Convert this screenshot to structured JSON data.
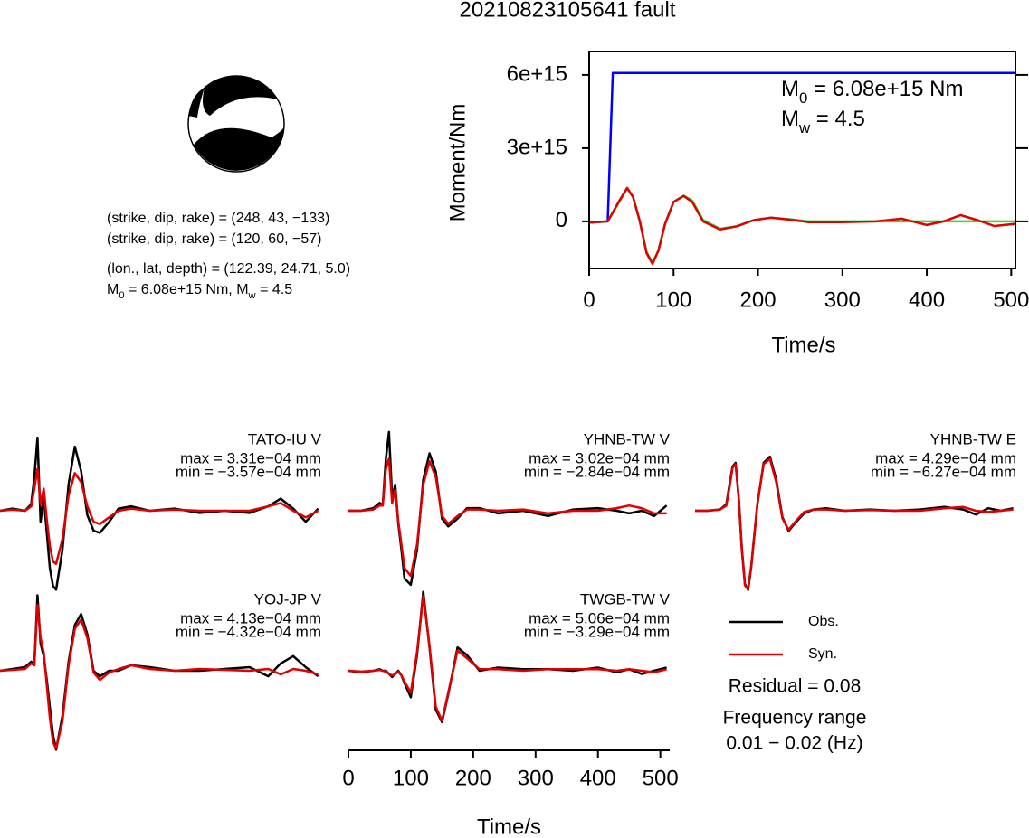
{
  "title": "20210823105641 fault",
  "mechanism": {
    "lines": [
      "(strike, dip, rake) = (248, 43, −133)",
      "(strike, dip, rake) = (120, 60, −57)",
      "(lon., lat, depth) = (122.39, 24.71, 5.0)"
    ],
    "moment_parts": [
      "M",
      "0",
      " = 6.08e+15 Nm, M",
      "w",
      " = 4.5"
    ]
  },
  "summary": {
    "residual": "Residual = 0.08",
    "frequency_label": "Frequency range",
    "frequency_range": "0.01 − 0.02 (Hz)"
  },
  "chart_data": [
    {
      "type": "line",
      "ylabel": "Moment/Nm",
      "xlabel": "Time/s",
      "xlim": [
        0,
        505
      ],
      "xticks": [
        0,
        100,
        200,
        300,
        400,
        500
      ],
      "ylim": [
        -1930000000000000.0,
        6960000000000000.0
      ],
      "yticks": [
        0,
        {
          "value": 3000000000000000.0,
          "label": "3e+15"
        },
        {
          "value": 6000000000000000.0,
          "label": "6e+15"
        }
      ],
      "annotations": [
        {
          "parts": [
            "M",
            "0",
            " = 6.08e+15 Nm"
          ]
        },
        {
          "parts": [
            "M",
            "w",
            " = 4.5"
          ]
        }
      ],
      "series": [
        {
          "color": "#0000ff",
          "x": [
            0,
            22,
            28,
            505
          ],
          "values": [
            -50000000000000.0,
            0,
            6080000000000000.0,
            6080000000000000.0
          ]
        },
        {
          "color": "#33dd33",
          "x": [
            0,
            22,
            35,
            45,
            52,
            60,
            68,
            75,
            82,
            90,
            100,
            112,
            122,
            135,
            155,
            175,
            195,
            215,
            235,
            260,
            300,
            505
          ],
          "values": [
            -50000000000000.0,
            0,
            750000000000000.0,
            1350000000000000.0,
            1000000000000000.0,
            0,
            -1250000000000000.0,
            -1700000000000000.0,
            -1200000000000000.0,
            -100000000000000.0,
            800000000000000.0,
            1050000000000000.0,
            850000000000000.0,
            50000000000000.0,
            -300000000000000.0,
            -200000000000000.0,
            50000000000000.0,
            150000000000000.0,
            100000000000000.0,
            0,
            0,
            0
          ]
        },
        {
          "color": "#e00000",
          "x": [
            0,
            22,
            35,
            45,
            52,
            60,
            68,
            75,
            82,
            90,
            100,
            112,
            122,
            135,
            155,
            175,
            195,
            215,
            235,
            260,
            300,
            340,
            370,
            400,
            420,
            440,
            460,
            480,
            505
          ],
          "values": [
            -50000000000000.0,
            0,
            800000000000000.0,
            1370000000000000.0,
            1000000000000000.0,
            0,
            -1300000000000000.0,
            -1740000000000000.0,
            -1200000000000000.0,
            -100000000000000.0,
            800000000000000.0,
            1040000000000000.0,
            800000000000000.0,
            0,
            -330000000000000.0,
            -200000000000000.0,
            50000000000000.0,
            150000000000000.0,
            80000000000000.0,
            -30000000000000.0,
            -30000000000000.0,
            0,
            110000000000000.0,
            -150000000000000.0,
            0,
            260000000000000.0,
            50000000000000.0,
            -190000000000000.0,
            -100000000000000.0
          ]
        }
      ]
    },
    {
      "type": "waveform",
      "station": "TATO-IU V",
      "max_text": "max = 3.31e−04 mm",
      "min_text": "min = −3.57e−04 mm",
      "xlim": [
        0,
        515
      ],
      "ylim": [
        -0.00036,
        0.00036
      ],
      "x": [
        0,
        20,
        40,
        50,
        55,
        60,
        65,
        70,
        75,
        80,
        85,
        90,
        100,
        110,
        120,
        130,
        140,
        150,
        160,
        175,
        190,
        210,
        240,
        280,
        320,
        360,
        400,
        430,
        450,
        470,
        490,
        510
      ],
      "series": [
        {
          "name": "Obs.",
          "color": "#000000",
          "values": [
            0,
            1e-05,
            0,
            3e-05,
            0.00015,
            0.000331,
            -5e-05,
            6e-05,
            -0.0001,
            -0.00026,
            -0.00034,
            -0.000357,
            -0.00018,
            0.00012,
            0.00029,
            0.00018,
            -2e-05,
            -9e-05,
            -0.0001,
            -5e-05,
            1e-05,
            2e-05,
            0,
            1e-05,
            -1e-05,
            0,
            -1e-05,
            2e-05,
            5.5e-05,
            1e-05,
            -5e-05,
            1e-05
          ]
        },
        {
          "name": "Syn.",
          "color": "#e00000",
          "values": [
            0,
            5e-06,
            0,
            2e-05,
            0.0001,
            0.00019,
            3e-05,
            0.0001,
            -4e-05,
            -0.00016,
            -0.00023,
            -0.00024,
            -0.00013,
            7e-05,
            0.00017,
            0.00013,
            2e-05,
            -5e-05,
            -6e-05,
            -3e-05,
            0,
            1e-05,
            0,
            5e-06,
            0,
            0,
            0,
            2e-05,
            3.5e-05,
            0,
            -3e-05,
            0
          ]
        }
      ]
    },
    {
      "type": "waveform",
      "station": "YHNB-TW V",
      "max_text": "max = 3.02e−04 mm",
      "min_text": "min = −2.84e−04 mm",
      "xlim": [
        0,
        515
      ],
      "ylim": [
        -0.000305,
        0.000305
      ],
      "x": [
        0,
        20,
        40,
        50,
        55,
        60,
        65,
        70,
        75,
        80,
        85,
        90,
        100,
        110,
        120,
        130,
        140,
        150,
        160,
        175,
        190,
        210,
        240,
        280,
        320,
        360,
        400,
        430,
        450,
        470,
        490,
        510
      ],
      "series": [
        {
          "name": "Obs.",
          "color": "#000000",
          "values": [
            0,
            0,
            1e-05,
            3e-05,
            2e-05,
            0.0002,
            0.000302,
            5e-05,
            0.0001,
            -5e-05,
            -0.00015,
            -0.00026,
            -0.000284,
            -0.00015,
            0.00012,
            0.00022,
            0.00015,
            -3e-05,
            -6e-05,
            -3e-05,
            1e-05,
            1e-05,
            -1e-05,
            0,
            -2e-05,
            5e-06,
            1e-05,
            0,
            -1e-05,
            0,
            -2e-05,
            2e-05
          ]
        },
        {
          "name": "Syn.",
          "color": "#e00000",
          "values": [
            0,
            0,
            5e-06,
            2e-05,
            2e-05,
            0.00016,
            0.0002,
            3e-05,
            8e-05,
            -4e-05,
            -0.00013,
            -0.00022,
            -0.00025,
            -0.00013,
            0.0001,
            0.00019,
            0.00013,
            -2e-05,
            -5e-05,
            -2e-05,
            5e-06,
            5e-06,
            0,
            5e-06,
            -1e-05,
            0,
            0,
            1e-05,
            2e-05,
            1e-05,
            -1e-05,
            -1e-05
          ]
        }
      ]
    },
    {
      "type": "waveform",
      "station": "YHNB-TW E",
      "max_text": "max = 4.29e−04 mm",
      "min_text": "min = −6.27e−04 mm",
      "xlim": [
        0,
        515
      ],
      "ylim": [
        -0.00063,
        0.00063
      ],
      "x": [
        0,
        20,
        40,
        50,
        55,
        60,
        65,
        70,
        75,
        80,
        85,
        90,
        100,
        110,
        120,
        130,
        140,
        150,
        160,
        175,
        190,
        210,
        240,
        280,
        320,
        360,
        400,
        430,
        450,
        470,
        490,
        510
      ],
      "series": [
        {
          "name": "Obs.",
          "color": "#000000",
          "values": [
            0,
            0,
            1e-05,
            5e-05,
            0.0002,
            0.00035,
            0.00038,
            0.0001,
            -0.0003,
            -0.00058,
            -0.000627,
            -0.00045,
            5e-05,
            0.00038,
            0.000429,
            0.00025,
            -5e-05,
            -0.00016,
            -0.0001,
            -2e-05,
            1e-05,
            2e-05,
            0,
            1e-05,
            0,
            1e-05,
            3e-05,
            1e-05,
            -3e-05,
            2e-05,
            0,
            2e-05
          ]
        },
        {
          "name": "Syn.",
          "color": "#e00000",
          "values": [
            0,
            0,
            1e-05,
            4e-05,
            0.00018,
            0.00034,
            0.00037,
            9e-05,
            -0.00031,
            -0.00059,
            -0.00062,
            -0.00044,
            6e-05,
            0.00037,
            0.00041,
            0.00023,
            -6e-05,
            -0.00015,
            -9e-05,
            -1e-05,
            1e-05,
            1e-05,
            0,
            5e-06,
            0,
            0,
            2e-05,
            3e-05,
            0,
            -1e-05,
            0,
            1e-05
          ]
        }
      ]
    },
    {
      "type": "waveform",
      "station": "YOJ-JP V",
      "max_text": "max = 4.13e−04 mm",
      "min_text": "min = −4.32e−04 mm",
      "xlim": [
        0,
        515
      ],
      "ylim": [
        -0.000435,
        0.000435
      ],
      "x": [
        0,
        20,
        40,
        50,
        55,
        60,
        65,
        70,
        75,
        80,
        85,
        90,
        100,
        110,
        120,
        130,
        140,
        150,
        160,
        175,
        190,
        210,
        240,
        280,
        320,
        360,
        400,
        430,
        450,
        470,
        490,
        510
      ],
      "series": [
        {
          "name": "Obs.",
          "color": "#000000",
          "values": [
            0,
            1e-05,
            2e-05,
            5e-05,
            3e-05,
            0.000413,
            0.00015,
            8e-05,
            -5e-05,
            -0.0002,
            -0.00035,
            -0.000432,
            -0.00025,
            5e-05,
            0.00025,
            0.00031,
            0.0002,
            0,
            -3e-05,
            0,
            0,
            3e-05,
            2e-05,
            0,
            0,
            1e-05,
            2e-05,
            -3e-05,
            4e-05,
            8e-05,
            2e-05,
            -3e-05
          ]
        },
        {
          "name": "Syn.",
          "color": "#e00000",
          "values": [
            0,
            5e-06,
            1e-05,
            4e-05,
            3e-05,
            0.00036,
            0.00018,
            0.0001,
            -8e-05,
            -0.00026,
            -0.00039,
            -0.000425,
            -0.00028,
            3e-05,
            0.00023,
            0.00028,
            0.00018,
            -1e-05,
            -5e-05,
            -1e-05,
            1e-05,
            3e-05,
            1e-05,
            0,
            1e-05,
            5e-06,
            0,
            1e-05,
            -2e-05,
            1e-05,
            0,
            -2e-05
          ]
        }
      ]
    },
    {
      "type": "waveform",
      "station": "TWGB-TW V",
      "max_text": "max = 5.06e−04 mm",
      "min_text": "min = −3.29e−04 mm",
      "xlim": [
        0,
        515
      ],
      "ylim": [
        -0.00051,
        0.00051
      ],
      "xticks": [
        0,
        100,
        200,
        300,
        400,
        500
      ],
      "xlabel": "Time/s",
      "x": [
        0,
        20,
        40,
        50,
        55,
        60,
        65,
        70,
        75,
        80,
        85,
        90,
        100,
        110,
        120,
        130,
        140,
        150,
        160,
        175,
        190,
        210,
        240,
        280,
        320,
        360,
        400,
        430,
        450,
        470,
        490,
        510
      ],
      "series": [
        {
          "name": "Obs.",
          "color": "#000000",
          "values": [
            0,
            -1e-05,
            0,
            1e-05,
            0,
            0,
            -2e-05,
            -4e-05,
            -2e-05,
            0,
            -3e-05,
            -8e-05,
            -0.00017,
            0.0001,
            0.000506,
            0.00015,
            -0.00025,
            -0.000329,
            -0.00015,
            0.00015,
            0.0001,
            0,
            2e-05,
            1e-05,
            1e-05,
            0,
            2e-05,
            -1e-05,
            1e-05,
            -2e-05,
            0,
            2e-05
          ]
        },
        {
          "name": "Syn.",
          "color": "#e00000",
          "values": [
            0,
            -5e-06,
            0,
            5e-06,
            0,
            -5e-06,
            -2e-05,
            -3e-05,
            -2e-05,
            -5e-06,
            -3e-05,
            -7e-05,
            -0.00014,
            0.00012,
            0.00048,
            0.00016,
            -0.00023,
            -0.00032,
            -0.00014,
            0.00013,
            8e-05,
            1e-05,
            1e-05,
            0,
            1e-05,
            1e-05,
            1e-05,
            0,
            1e-05,
            0,
            -1e-05,
            1e-05
          ]
        }
      ]
    }
  ]
}
